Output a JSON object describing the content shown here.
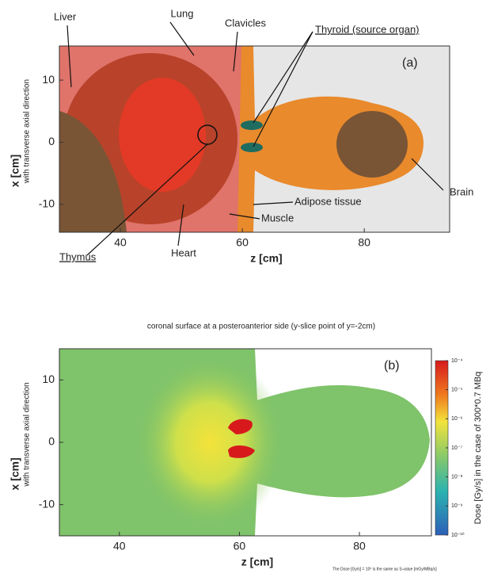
{
  "chart_data": [
    {
      "type": "organ-map",
      "panel_label": "(a)",
      "x_label": "z [cm]",
      "y_label": "x [cm]",
      "y_label_sub": "with transverse axial direction",
      "xlim": [
        30,
        94
      ],
      "ylim": [
        -14.5,
        15.5
      ],
      "xticks": [
        40,
        60,
        80
      ],
      "yticks": [
        -10,
        0,
        10
      ],
      "annotations": [
        "Liver",
        "Lung",
        "Clavicles",
        "Thyroid (source organ)",
        "Brain",
        "Adipose tissue",
        "Muscle",
        "Thymus",
        "Heart"
      ]
    },
    {
      "type": "dose-map",
      "panel_label": "(b)",
      "title": "coronal surface at a posteroanterior side (y-slice point of y=-2cm)",
      "x_label": "z [cm]",
      "y_label": "x [cm]",
      "y_label_sub": "with transverse axial direction",
      "xlim": [
        30,
        92
      ],
      "ylim": [
        -15,
        15
      ],
      "xticks": [
        40,
        60,
        80
      ],
      "yticks": [
        -10,
        0,
        10
      ],
      "colorbar": {
        "label": "Dose [Gy/s] in the case of 300*0.7 MBq",
        "log": true,
        "lim": [
          1e-10,
          0.0001
        ],
        "ticks": [
          {
            "value": 0.0001,
            "label": "10⁻⁴"
          },
          {
            "value": 1e-05,
            "label": "10⁻⁵"
          },
          {
            "value": 1e-06,
            "label": "10⁻⁶"
          },
          {
            "value": 1e-07,
            "label": "10⁻⁷"
          },
          {
            "value": 1e-08,
            "label": "10⁻⁸"
          },
          {
            "value": 1e-09,
            "label": "10⁻⁹"
          },
          {
            "value": 1e-10,
            "label": "10⁻¹⁰"
          }
        ]
      }
    }
  ],
  "footnote": "The Dose [Gy/s] = 10⁰ is the same as S-value [mGy/MBq/s]"
}
